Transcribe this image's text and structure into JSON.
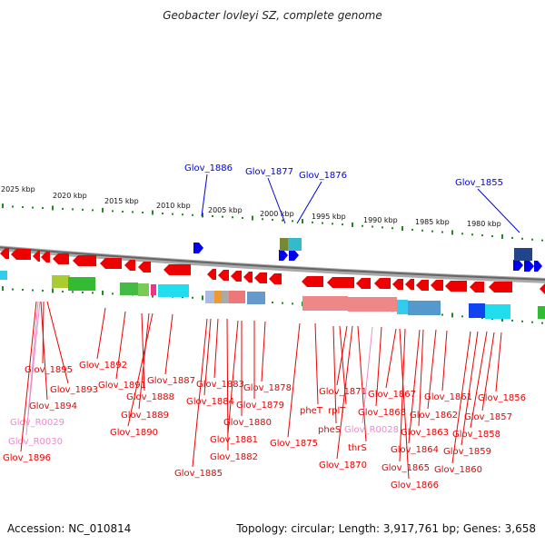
{
  "title": "Geobacter lovleyi SZ, complete genome",
  "accession": "Accession: NC_010814",
  "topology": "Topology: circular; Length: 3,917,761 bp; Genes: 3,658",
  "colors": {
    "forward_arrow": "#0000ee",
    "reverse_arrow": "#ee0000",
    "rna_label": "#ee88cc",
    "tick": "#228822",
    "backbone": "#888888"
  },
  "scale_labels": [
    "2025 kbp",
    "2020 kbp",
    "2015 kbp",
    "2010 kbp",
    "2005 kbp",
    "2000 kbp",
    "1995 kbp",
    "1990 kbp",
    "1985 kbp",
    "1980 kbp"
  ],
  "genes_top": [
    "Glov_1886",
    "Glov_1877",
    "Glov_1876",
    "Glov_1855"
  ],
  "genes_bottom": [
    "Glov_1895",
    "Glov_1892",
    "Glov_1893",
    "Glov_1894",
    "Glov_R0029",
    "Glov_R0030",
    "Glov_1896",
    "Glov_1891",
    "Glov_1888",
    "Glov_1889",
    "Glov_1890",
    "Glov_1887",
    "Glov_1883",
    "Glov_1884",
    "Glov_1885",
    "Glov_1881",
    "Glov_1882",
    "Glov_1880",
    "Glov_1879",
    "Glov_1878",
    "pheT",
    "Glov_1875",
    "pheS",
    "rplT",
    "Glov_1871",
    "Glov_1870",
    "thrS",
    "Glov_R0028",
    "Glov_1868",
    "Glov_1867",
    "Glov_1865",
    "Glov_1866",
    "Glov_1864",
    "Glov_1863",
    "Glov_1862",
    "Glov_1861",
    "Glov_1860",
    "Glov_1859",
    "Glov_1858",
    "Glov_1857",
    "Glov_1856"
  ]
}
